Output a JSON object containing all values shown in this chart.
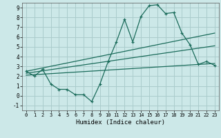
{
  "xlabel": "Humidex (Indice chaleur)",
  "bg_color": "#cce8e8",
  "grid_color": "#aacccc",
  "line_color": "#1a6b5a",
  "xlim": [
    -0.5,
    23.5
  ],
  "ylim": [
    -1.5,
    9.5
  ],
  "xticks": [
    0,
    1,
    2,
    3,
    4,
    5,
    6,
    7,
    8,
    9,
    10,
    11,
    12,
    13,
    14,
    15,
    16,
    17,
    18,
    19,
    20,
    21,
    22,
    23
  ],
  "yticks": [
    -1,
    0,
    1,
    2,
    3,
    4,
    5,
    6,
    7,
    8,
    9
  ],
  "main_line_x": [
    0,
    1,
    2,
    3,
    4,
    5,
    6,
    7,
    8,
    9,
    10,
    11,
    12,
    13,
    14,
    15,
    16,
    17,
    18,
    19,
    20,
    21,
    22,
    23
  ],
  "main_line_y": [
    2.5,
    2.0,
    2.7,
    1.2,
    0.65,
    0.65,
    0.1,
    0.1,
    -0.6,
    1.2,
    3.5,
    5.5,
    7.8,
    5.5,
    8.1,
    9.2,
    9.3,
    8.4,
    8.5,
    6.4,
    5.2,
    3.2,
    3.5,
    3.1
  ],
  "upper_line_x": [
    0,
    23
  ],
  "upper_line_y": [
    2.5,
    6.4
  ],
  "middle_line_x": [
    0,
    23
  ],
  "middle_line_y": [
    2.3,
    5.1
  ],
  "lower_line_x": [
    0,
    23
  ],
  "lower_line_y": [
    2.1,
    3.3
  ]
}
